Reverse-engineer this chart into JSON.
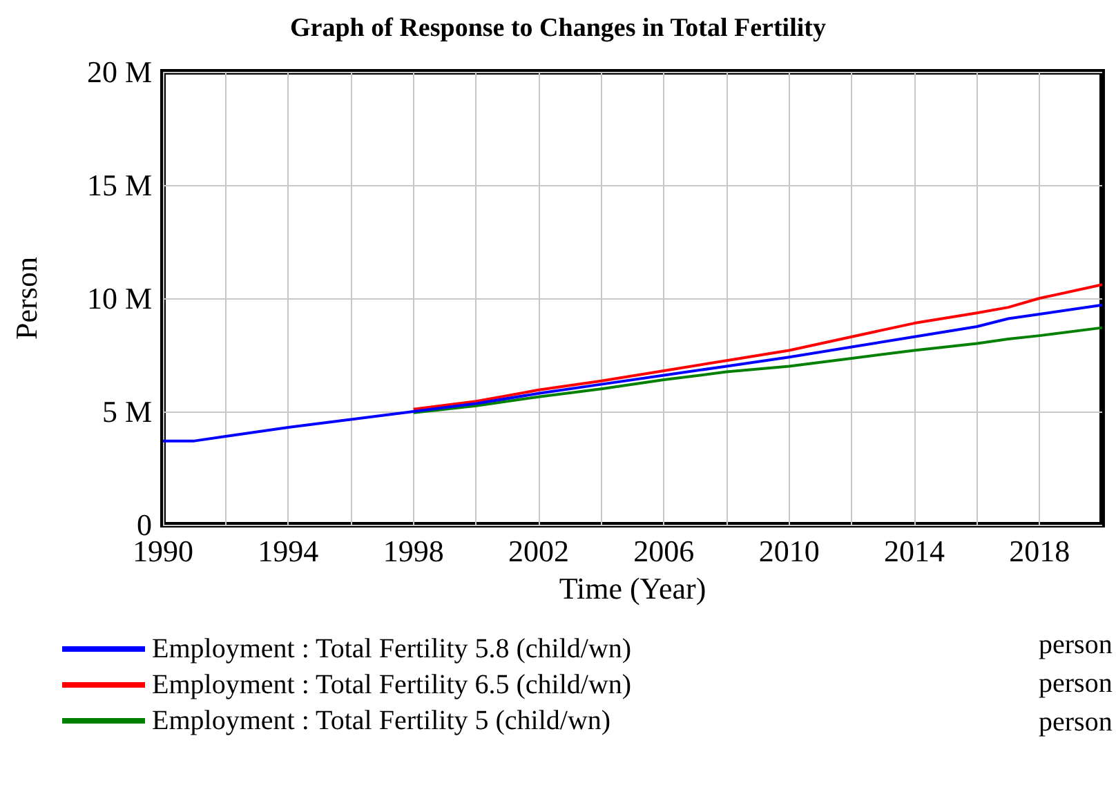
{
  "chart_data": {
    "type": "line",
    "title": "Graph of Response to Changes in Total Fertility",
    "xlabel": "Time (Year)",
    "ylabel": "Person",
    "x": [
      1990,
      1991,
      1992,
      1994,
      1996,
      1998,
      2000,
      2002,
      2004,
      2006,
      2008,
      2010,
      2012,
      2014,
      2016,
      2017,
      2018,
      2020
    ],
    "xlim": [
      1990,
      2020
    ],
    "xticks": [
      1990,
      {
        "value": 1992,
        "label": null
      },
      1994,
      {
        "value": 1996,
        "label": null
      },
      1998,
      {
        "value": 2000,
        "label": null
      },
      2002,
      {
        "value": 2004,
        "label": null
      },
      2006,
      {
        "value": 2008,
        "label": null
      },
      2010,
      {
        "value": 2012,
        "label": null
      },
      2014,
      {
        "value": 2016,
        "label": null
      },
      2018
    ],
    "ylim": [
      0,
      20
    ],
    "yticks": [
      0,
      {
        "value": 5,
        "label": "5 M"
      },
      {
        "value": 10,
        "label": "10 M"
      },
      {
        "value": 15,
        "label": "15 M"
      },
      {
        "value": 20,
        "label": "20 M"
      }
    ],
    "series": [
      {
        "name": "Employment : Total Fertility 5.8 (child/wn)",
        "color": "#0000ff",
        "values": [
          3.7,
          3.7,
          3.9,
          4.3,
          4.65,
          5.0,
          5.35,
          5.8,
          6.2,
          6.6,
          7.0,
          7.4,
          7.85,
          8.3,
          8.75,
          9.1,
          9.3,
          9.7
        ]
      },
      {
        "name": "Employment : Total Fertility 6.5 (child/wn)",
        "color": "#ff0000",
        "values": [
          null,
          null,
          null,
          null,
          null,
          5.1,
          5.45,
          5.95,
          6.35,
          6.8,
          7.25,
          7.7,
          8.3,
          8.9,
          9.35,
          9.6,
          10.0,
          10.6
        ]
      },
      {
        "name": "Employment : Total Fertility 5 (child/wn)",
        "color": "#008000",
        "values": [
          null,
          null,
          null,
          null,
          null,
          4.95,
          5.25,
          5.65,
          6.0,
          6.4,
          6.75,
          7.0,
          7.35,
          7.7,
          8.0,
          8.2,
          8.35,
          8.7
        ]
      }
    ],
    "annotations": [
      "person",
      "person",
      "person"
    ],
    "grid": true,
    "legend": "bottom",
    "marker": "none",
    "line_style": "solid"
  }
}
